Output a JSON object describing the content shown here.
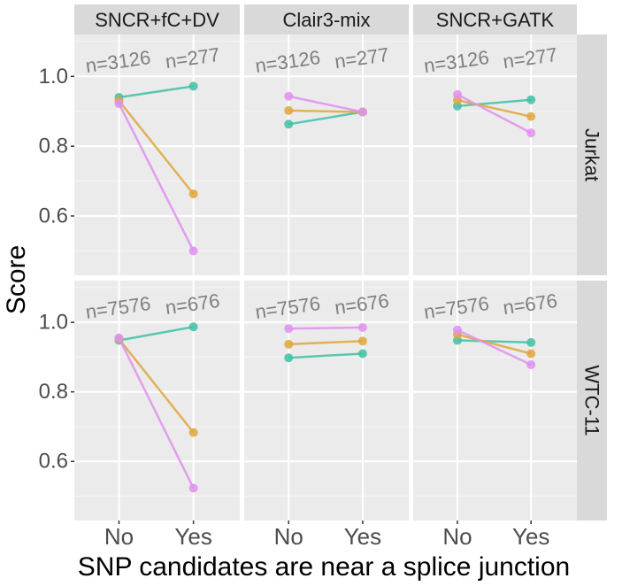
{
  "chart_data": {
    "type": "line",
    "facet_columns": [
      "SNCR+fC+DV",
      "Clair3-mix",
      "SNCR+GATK"
    ],
    "facet_rows": [
      "Jurkat",
      "WTC-11"
    ],
    "categories": [
      "No",
      "Yes"
    ],
    "xlabel": "SNP candidates are near a splice junction",
    "ylabel": "Score",
    "ylim": [
      0.43,
      1.12
    ],
    "yticks": [
      0.6,
      0.8,
      1.0
    ],
    "ytick_labels": [
      "0.6",
      "0.8",
      "1.0"
    ],
    "grid": true,
    "series_colors": {
      "teal": "#3fc1a6",
      "orange": "#e0a63c",
      "violet": "#e08ff0"
    },
    "annotations": {
      "Jurkat": [
        "n=3126",
        "n=277"
      ],
      "WTC-11": [
        "n=7576",
        "n=676"
      ]
    },
    "panels": [
      {
        "row": "Jurkat",
        "col": "SNCR+fC+DV",
        "series": [
          {
            "name": "teal",
            "values": [
              0.94,
              0.972
            ]
          },
          {
            "name": "orange",
            "values": [
              0.93,
              0.663
            ]
          },
          {
            "name": "violet",
            "values": [
              0.922,
              0.5
            ]
          }
        ]
      },
      {
        "row": "Jurkat",
        "col": "Clair3-mix",
        "series": [
          {
            "name": "teal",
            "values": [
              0.863,
              0.898
            ]
          },
          {
            "name": "orange",
            "values": [
              0.902,
              0.898
            ]
          },
          {
            "name": "violet",
            "values": [
              0.943,
              0.898
            ]
          }
        ]
      },
      {
        "row": "Jurkat",
        "col": "SNCR+GATK",
        "series": [
          {
            "name": "teal",
            "values": [
              0.915,
              0.933
            ]
          },
          {
            "name": "orange",
            "values": [
              0.932,
              0.885
            ]
          },
          {
            "name": "violet",
            "values": [
              0.948,
              0.838
            ]
          }
        ]
      },
      {
        "row": "WTC-11",
        "col": "SNCR+fC+DV",
        "series": [
          {
            "name": "teal",
            "values": [
              0.948,
              0.987
            ]
          },
          {
            "name": "orange",
            "values": [
              0.952,
              0.683
            ]
          },
          {
            "name": "violet",
            "values": [
              0.955,
              0.523
            ]
          }
        ]
      },
      {
        "row": "WTC-11",
        "col": "Clair3-mix",
        "series": [
          {
            "name": "teal",
            "values": [
              0.898,
              0.91
            ]
          },
          {
            "name": "orange",
            "values": [
              0.937,
              0.946
            ]
          },
          {
            "name": "violet",
            "values": [
              0.982,
              0.985
            ]
          }
        ]
      },
      {
        "row": "WTC-11",
        "col": "SNCR+GATK",
        "series": [
          {
            "name": "teal",
            "values": [
              0.948,
              0.942
            ]
          },
          {
            "name": "orange",
            "values": [
              0.965,
              0.91
            ]
          },
          {
            "name": "violet",
            "values": [
              0.978,
              0.878
            ]
          }
        ]
      }
    ]
  }
}
